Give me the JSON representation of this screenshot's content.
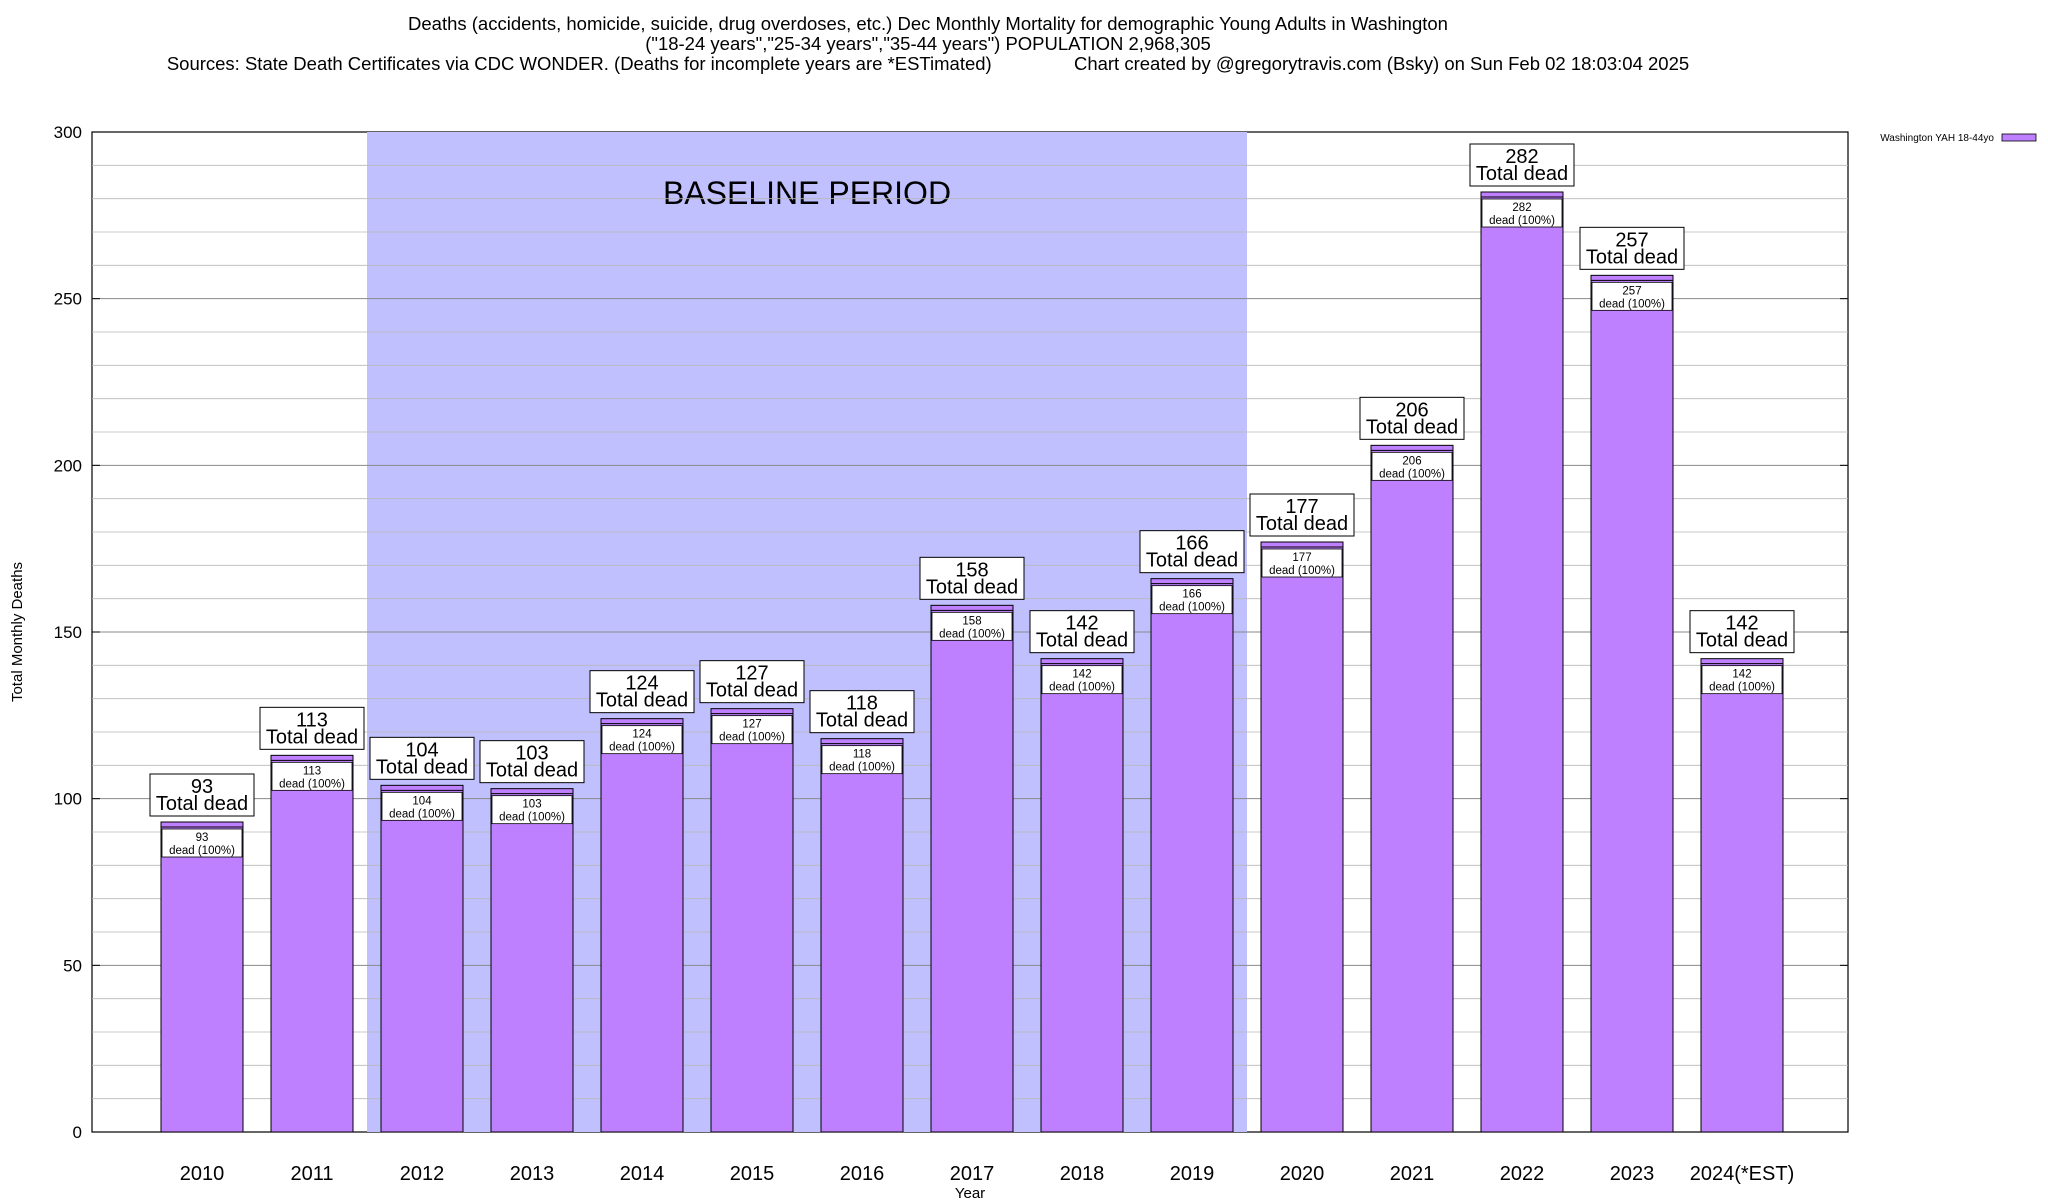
{
  "header": {
    "line1": "Deaths (accidents, homicide, suicide, drug overdoses, etc.) Dec Monthly Mortality for demographic Young Adults in Washington",
    "line2": "(\"18-24 years\",\"25-34 years\",\"35-44 years\") POPULATION 2,968,305",
    "line3": "Sources: State Death Certificates via CDC WONDER. (Deaths for incomplete years are *ESTimated)                Chart created by @gregorytravis.com (Bsky) on Sun Feb 02 18:03:04 2025"
  },
  "chart_data": {
    "type": "bar",
    "xlabel": "Year",
    "ylabel": "Total Monthly Deaths",
    "ylim": [
      0,
      300
    ],
    "yticks": [
      0,
      50,
      100,
      150,
      200,
      250,
      300
    ],
    "minor_grid_step": 10,
    "grid": true,
    "categories": [
      "2010",
      "2011",
      "2012",
      "2013",
      "2014",
      "2015",
      "2016",
      "2017",
      "2018",
      "2019",
      "2020",
      "2021",
      "2022",
      "2023",
      "2024(*EST)"
    ],
    "series": [
      {
        "name": "Washington YAH 18-44yo",
        "color": "#bf80ff",
        "values": [
          93,
          113,
          104,
          103,
          124,
          127,
          118,
          158,
          142,
          166,
          177,
          206,
          282,
          257,
          142
        ]
      }
    ],
    "bar_label_top": "Total dead",
    "bar_label_inner": "dead (100%)",
    "baseline_region": {
      "label": "BASELINE PERIOD",
      "from_category": "2012",
      "to_category": "2019",
      "color": "#c0c0ff"
    },
    "legend_position": "top-right"
  }
}
